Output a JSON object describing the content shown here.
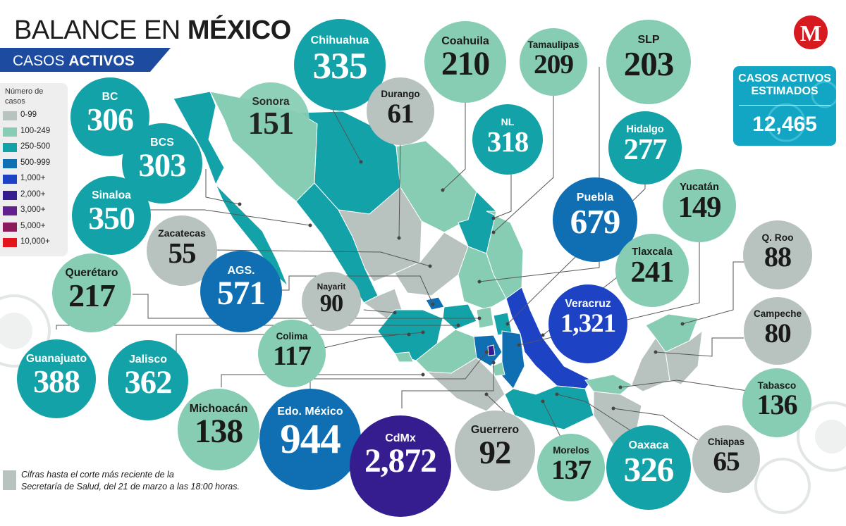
{
  "header": {
    "title_light": "BALANCE EN ",
    "title_bold": "MÉXICO",
    "subtitle_light": "CASOS ",
    "subtitle_bold": "ACTIVOS"
  },
  "logo": {
    "letter": "M",
    "icon": "milenio-logo-icon"
  },
  "legend": {
    "title": "Número de casos",
    "items": [
      {
        "label": "0-99",
        "color": "#b8c3bf"
      },
      {
        "label": "100-249",
        "color": "#86cdb3"
      },
      {
        "label": "250-500",
        "color": "#13a2a8"
      },
      {
        "label": "500-999",
        "color": "#0f6fb2"
      },
      {
        "label": "1,000+",
        "color": "#1d43c4"
      },
      {
        "label": "2,000+",
        "color": "#351c8f"
      },
      {
        "label": "3,000+",
        "color": "#611f8f"
      },
      {
        "label": "5,000+",
        "color": "#8c1b5b"
      },
      {
        "label": "10,000+",
        "color": "#e3151d"
      }
    ]
  },
  "total": {
    "label_line1": "CASOS ACTIVOS",
    "label_line2": "ESTIMADOS",
    "value": "12,465",
    "color": "#13a6c4"
  },
  "states": [
    {
      "id": "bc",
      "name": "BC",
      "value": "306",
      "tier": 2
    },
    {
      "id": "bcs",
      "name": "BCS",
      "value": "303",
      "tier": 2
    },
    {
      "id": "sinaloa",
      "name": "Sinaloa",
      "value": "350",
      "tier": 2
    },
    {
      "id": "sonora",
      "name": "Sonora",
      "value": "151",
      "tier": 1
    },
    {
      "id": "chihuahua",
      "name": "Chihuahua",
      "value": "335",
      "tier": 2
    },
    {
      "id": "durango",
      "name": "Durango",
      "value": "61",
      "tier": 0
    },
    {
      "id": "coahuila",
      "name": "Coahuila",
      "value": "210",
      "tier": 1
    },
    {
      "id": "tamaulipas",
      "name": "Tamaulipas",
      "value": "209",
      "tier": 1
    },
    {
      "id": "slp",
      "name": "SLP",
      "value": "203",
      "tier": 1
    },
    {
      "id": "nl",
      "name": "NL",
      "value": "318",
      "tier": 2
    },
    {
      "id": "hidalgo",
      "name": "Hidalgo",
      "value": "277",
      "tier": 2
    },
    {
      "id": "yucatan",
      "name": "Yucatán",
      "value": "149",
      "tier": 1
    },
    {
      "id": "puebla",
      "name": "Puebla",
      "value": "679",
      "tier": 3
    },
    {
      "id": "zacatecas",
      "name": "Zacatecas",
      "value": "55",
      "tier": 0
    },
    {
      "id": "ags",
      "name": "AGS.",
      "value": "571",
      "tier": 3
    },
    {
      "id": "nayarit",
      "name": "Nayarit",
      "value": "90",
      "tier": 0
    },
    {
      "id": "tlaxcala",
      "name": "Tlaxcala",
      "value": "241",
      "tier": 1
    },
    {
      "id": "qroo",
      "name": "Q. Roo",
      "value": "88",
      "tier": 0
    },
    {
      "id": "queretaro",
      "name": "Querétaro",
      "value": "217",
      "tier": 1
    },
    {
      "id": "veracruz",
      "name": "Veracruz",
      "value": "1,321",
      "tier": 4
    },
    {
      "id": "campeche",
      "name": "Campeche",
      "value": "80",
      "tier": 0
    },
    {
      "id": "colima",
      "name": "Colima",
      "value": "117",
      "tier": 1
    },
    {
      "id": "guanajuato",
      "name": "Guanajuato",
      "value": "388",
      "tier": 2
    },
    {
      "id": "jalisco",
      "name": "Jalisco",
      "value": "362",
      "tier": 2
    },
    {
      "id": "tabasco",
      "name": "Tabasco",
      "value": "136",
      "tier": 1
    },
    {
      "id": "michoacan",
      "name": "Michoacán",
      "value": "138",
      "tier": 1
    },
    {
      "id": "edomex",
      "name": "Edo. México",
      "value": "944",
      "tier": 3
    },
    {
      "id": "cdmx",
      "name": "CdMx",
      "value": "2,872",
      "tier": 5
    },
    {
      "id": "guerrero",
      "name": "Guerrero",
      "value": "92",
      "tier": 0
    },
    {
      "id": "morelos",
      "name": "Morelos",
      "value": "137",
      "tier": 1
    },
    {
      "id": "oaxaca",
      "name": "Oaxaca",
      "value": "326",
      "tier": 2
    },
    {
      "id": "chiapas",
      "name": "Chiapas",
      "value": "65",
      "tier": 0
    }
  ],
  "footnote": {
    "line1": "Cifras hasta el corte más reciente de la",
    "line2": "Secretaría de Salud, del 21 de marzo a las 18:00 horas."
  }
}
